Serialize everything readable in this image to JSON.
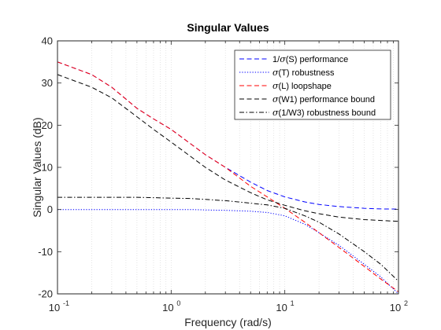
{
  "chart_data": {
    "type": "line",
    "title": "Singular Values",
    "xlabel": "Frequency (rad/s)",
    "ylabel": "Singular Values (dB)",
    "xscale": "log",
    "xlim": [
      0.1,
      100
    ],
    "ylim": [
      -20,
      40
    ],
    "grid": "x-only (major and minor)",
    "legend_position": "top-right",
    "x_ticks": [
      {
        "base": "10",
        "exp": "-1",
        "value": 0.1
      },
      {
        "base": "10",
        "exp": "0",
        "value": 1
      },
      {
        "base": "10",
        "exp": "1",
        "value": 10
      },
      {
        "base": "10",
        "exp": "2",
        "value": 100
      }
    ],
    "y_ticks": [
      "-20",
      "-10",
      "0",
      "10",
      "20",
      "30",
      "40"
    ],
    "y_tick_values": [
      -20,
      -10,
      0,
      10,
      20,
      30,
      40
    ],
    "x": [
      0.1,
      0.2,
      0.3,
      0.5,
      0.7,
      1,
      1.5,
      2,
      3,
      5,
      7,
      10,
      15,
      20,
      30,
      50,
      70,
      100
    ],
    "series": [
      {
        "name": "1/σ(S) performance",
        "color": "#0000ff",
        "style": "dashed",
        "values": [
          35,
          32,
          29,
          24,
          21.5,
          19,
          15.5,
          13,
          10,
          6.5,
          4.5,
          3,
          1.8,
          1.2,
          0.7,
          0.3,
          0.15,
          0.1
        ]
      },
      {
        "name": "σ(T) robustness",
        "color": "#0000ff",
        "style": "dotted",
        "values": [
          0,
          0,
          0,
          0,
          0,
          0,
          0,
          -0.1,
          -0.2,
          -0.4,
          -0.7,
          -1.5,
          -3.5,
          -5.5,
          -8.5,
          -13,
          -16,
          -20
        ]
      },
      {
        "name": "σ(L) loopshape",
        "color": "#ff0000",
        "style": "dashed",
        "values": [
          35,
          32,
          29,
          24,
          21.5,
          19,
          15.5,
          13,
          10,
          5.5,
          3,
          0.3,
          -3,
          -5.5,
          -9,
          -13.5,
          -16.5,
          -19.5
        ]
      },
      {
        "name": "σ(W1) performance bound",
        "color": "#000000",
        "style": "dashed",
        "values": [
          32,
          29,
          26.5,
          22,
          19,
          16,
          12.5,
          10,
          7,
          4,
          2.3,
          1,
          -0.3,
          -1,
          -1.8,
          -2.4,
          -2.6,
          -2.8
        ]
      },
      {
        "name": "σ(1/W3) robustness bound",
        "color": "#000000",
        "style": "dashdot",
        "values": [
          2.9,
          2.9,
          2.9,
          2.9,
          2.8,
          2.7,
          2.6,
          2.4,
          2.1,
          1.5,
          1.1,
          0.3,
          -1.5,
          -3,
          -5.8,
          -10,
          -13,
          -17
        ]
      }
    ]
  }
}
